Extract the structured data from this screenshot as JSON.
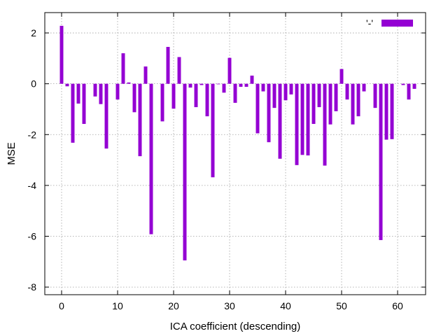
{
  "chart_data": {
    "type": "bar",
    "xlabel": "ICA coefficient (descending)",
    "ylabel": "MSE",
    "xlim": [
      -3,
      65
    ],
    "ylim": [
      -8.3,
      2.8
    ],
    "xticks": [
      0,
      10,
      20,
      30,
      40,
      50,
      60
    ],
    "yticks": [
      -8,
      -6,
      -4,
      -2,
      0,
      2
    ],
    "grid": true,
    "legend_position": "top-right",
    "series": [
      {
        "name": "'-'",
        "color": "#9400d3",
        "x": [
          0,
          1,
          2,
          3,
          4,
          5,
          6,
          7,
          8,
          9,
          10,
          11,
          12,
          13,
          14,
          15,
          16,
          17,
          18,
          19,
          20,
          21,
          22,
          23,
          24,
          25,
          26,
          27,
          28,
          29,
          30,
          31,
          32,
          33,
          34,
          35,
          36,
          37,
          38,
          39,
          40,
          41,
          42,
          43,
          44,
          45,
          46,
          47,
          48,
          49,
          50,
          51,
          52,
          53,
          54,
          55,
          56,
          57,
          58,
          59,
          60,
          61,
          62,
          63
        ],
        "values": [
          2.28,
          -0.1,
          -2.32,
          -0.78,
          -1.58,
          0.0,
          -0.5,
          -0.8,
          -2.55,
          0.0,
          -0.62,
          1.2,
          0.05,
          -1.12,
          -2.85,
          0.68,
          -5.92,
          0.0,
          -1.48,
          1.45,
          -0.98,
          1.05,
          -6.95,
          -0.15,
          -0.92,
          -0.05,
          -1.28,
          -3.68,
          -0.02,
          -0.35,
          1.02,
          -0.75,
          -0.12,
          -0.12,
          0.32,
          -1.95,
          -0.3,
          -2.3,
          -0.95,
          -2.95,
          -0.65,
          -0.42,
          -3.2,
          -2.8,
          -2.82,
          -1.58,
          -0.92,
          -3.22,
          -1.6,
          -1.08,
          0.58,
          -0.62,
          -1.6,
          -1.28,
          -0.3,
          0.0,
          -0.95,
          -6.15,
          -2.2,
          -2.18,
          0.0,
          -0.05,
          -0.62,
          -0.2
        ]
      }
    ]
  }
}
